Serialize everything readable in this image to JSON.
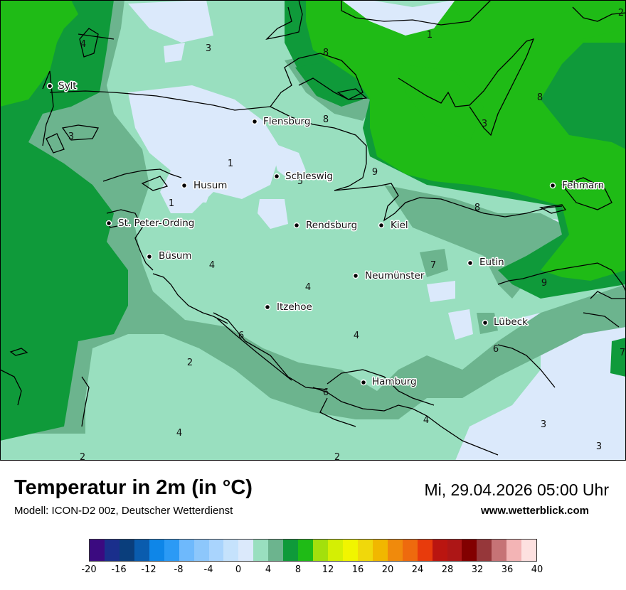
{
  "map": {
    "colors": {
      "land_cold": "#dbe9fb",
      "land_mild": "#99dfbf",
      "land_mid": "#6cb48e",
      "water_warm": "#0f9a3a",
      "water_hot": "#1fbb16",
      "outline": "#000000"
    },
    "cities": [
      {
        "name": "Sylt",
        "id": "sylt"
      },
      {
        "name": "Flensburg",
        "id": "flensburg"
      },
      {
        "name": "Schleswig",
        "id": "schleswig"
      },
      {
        "name": "Husum",
        "id": "husum"
      },
      {
        "name": "Fehmarn",
        "id": "fehmarn"
      },
      {
        "name": "St. Peter-Ording",
        "id": "st-peter-ording"
      },
      {
        "name": "Rendsburg",
        "id": "rendsburg"
      },
      {
        "name": "Kiel",
        "id": "kiel"
      },
      {
        "name": "Büsum",
        "id": "buesum"
      },
      {
        "name": "Eutin",
        "id": "eutin"
      },
      {
        "name": "Neumünster",
        "id": "neumuenster"
      },
      {
        "name": "Itzehoe",
        "id": "itzehoe"
      },
      {
        "name": "Lübeck",
        "id": "luebeck"
      },
      {
        "name": "Hamburg",
        "id": "hamburg"
      }
    ],
    "isotherm_labels": [
      "1",
      "2",
      "3",
      "4",
      "3",
      "8",
      "8",
      "8",
      "3",
      "3",
      "1",
      "5",
      "9",
      "1",
      "8",
      "4",
      "4",
      "7",
      "9",
      "6",
      "4",
      "6",
      "7",
      "2",
      "6",
      "4",
      "3",
      "4",
      "3",
      "2",
      "2"
    ]
  },
  "footer": {
    "title": "Temperatur in 2m (in °C)",
    "model": "Modell: ICON-D2 00z, Deutscher Wetterdienst",
    "datetime": "Mi, 29.04.2026 05:00 Uhr",
    "website": "www.wetterblick.com"
  },
  "legend": {
    "colors": [
      "#3b0a80",
      "#1a2f8c",
      "#0a3e7c",
      "#0a5cae",
      "#0e86e8",
      "#2b9af5",
      "#6eb9fc",
      "#8dc7fb",
      "#a9d4fd",
      "#c5e2fc",
      "#dbe9fb",
      "#99dfbf",
      "#6cb48e",
      "#0f9a3a",
      "#1fbb16",
      "#a3e00c",
      "#d4ef04",
      "#f1f500",
      "#f0d80b",
      "#f1b700",
      "#f08a0c",
      "#ee6a0e",
      "#e83b0c",
      "#ba1510",
      "#ad1616",
      "#820000",
      "#96373a",
      "#c67376",
      "#f3b4b5",
      "#fde1e0"
    ],
    "ticks": [
      "-20",
      "-16",
      "-12",
      "-8",
      "-4",
      "0",
      "4",
      "8",
      "12",
      "16",
      "20",
      "24",
      "28",
      "32",
      "36",
      "40"
    ],
    "min": -20,
    "max": 40
  }
}
